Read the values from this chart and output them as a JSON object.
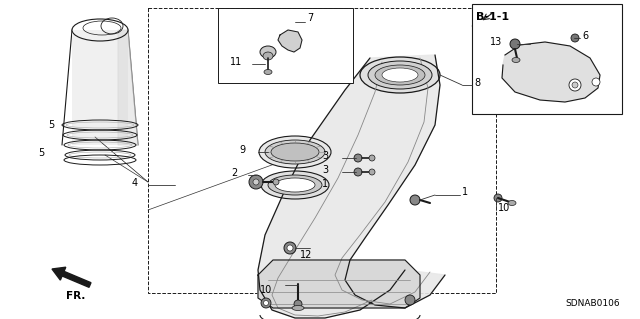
{
  "bg_color": "#ffffff",
  "diagram_code": "SDNAB0106",
  "b11_label": "B-1-1",
  "fr_label": "FR.",
  "dark": "#1a1a1a",
  "gray": "#666666",
  "light_gray": "#cccccc",
  "mid_gray": "#999999"
}
